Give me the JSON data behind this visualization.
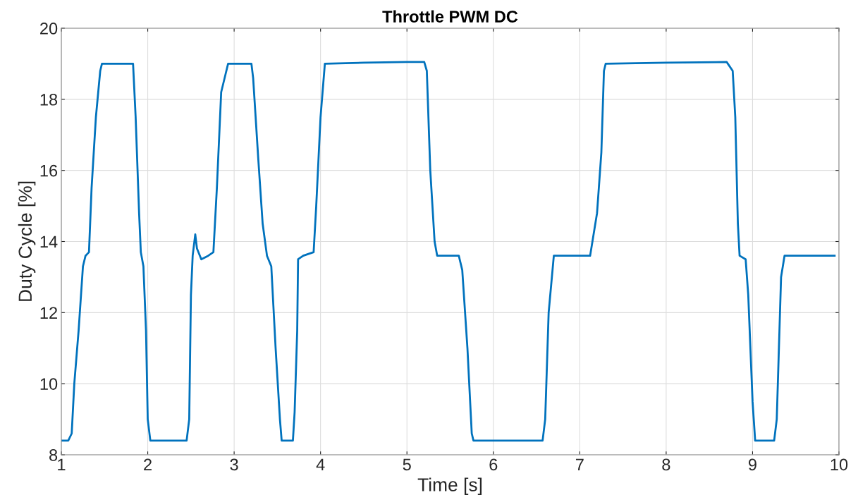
{
  "chart_data": {
    "type": "line",
    "title": "Throttle PWM DC",
    "xlabel": "Time [s]",
    "ylabel": "Duty Cycle [%]",
    "x": [
      1.0,
      1.08,
      1.12,
      1.15,
      1.2,
      1.25,
      1.28,
      1.32,
      1.35,
      1.4,
      1.45,
      1.47,
      1.55,
      1.83,
      1.86,
      1.9,
      1.92,
      1.95,
      1.98,
      2.0,
      2.03,
      2.3,
      2.45,
      2.48,
      2.5,
      2.52,
      2.55,
      2.57,
      2.62,
      2.7,
      2.76,
      2.8,
      2.85,
      2.9,
      2.93,
      3.2,
      3.22,
      3.28,
      3.33,
      3.38,
      3.43,
      3.48,
      3.53,
      3.55,
      3.68,
      3.7,
      3.73,
      3.74,
      3.8,
      3.92,
      3.95,
      4.0,
      4.05,
      4.5,
      5.0,
      5.2,
      5.23,
      5.27,
      5.32,
      5.35,
      5.6,
      5.64,
      5.7,
      5.75,
      5.77,
      6.2,
      6.57,
      6.6,
      6.64,
      6.7,
      6.9,
      7.12,
      7.2,
      7.25,
      7.28,
      7.3,
      8.0,
      8.7,
      8.77,
      8.8,
      8.83,
      8.85,
      8.92,
      8.95,
      9.0,
      9.03,
      9.25,
      9.28,
      9.33,
      9.37,
      9.6,
      9.95
    ],
    "series": [
      {
        "color": "#0072bd",
        "values": [
          8.4,
          8.4,
          8.6,
          10,
          11.5,
          13.3,
          13.6,
          13.7,
          15.5,
          17.5,
          18.8,
          19.0,
          19.0,
          19.0,
          17.5,
          14.8,
          13.7,
          13.3,
          11.5,
          9.0,
          8.4,
          8.4,
          8.4,
          9.0,
          12.5,
          13.6,
          14.2,
          13.8,
          13.5,
          13.6,
          13.7,
          15.5,
          18.2,
          18.7,
          19.0,
          19.0,
          18.6,
          16.3,
          14.5,
          13.6,
          13.3,
          11.0,
          9.0,
          8.4,
          8.4,
          9.2,
          11.5,
          13.5,
          13.6,
          13.7,
          15.0,
          17.5,
          19.0,
          19.03,
          19.05,
          19.05,
          18.8,
          16.0,
          14.0,
          13.6,
          13.6,
          13.2,
          11.0,
          8.6,
          8.4,
          8.4,
          8.4,
          9.0,
          12.0,
          13.6,
          13.6,
          13.6,
          14.8,
          16.5,
          18.8,
          19.0,
          19.03,
          19.05,
          18.8,
          17.5,
          14.5,
          13.6,
          13.5,
          12.5,
          9.5,
          8.4,
          8.4,
          9.0,
          13.0,
          13.6,
          13.6,
          13.6
        ]
      }
    ],
    "xlim": [
      1,
      10
    ],
    "xticks": [
      1,
      2,
      3,
      4,
      5,
      6,
      7,
      8,
      9,
      10
    ],
    "ylim": [
      8,
      20
    ],
    "yticks": [
      8,
      10,
      12,
      14,
      16,
      18,
      20
    ],
    "grid": true,
    "line_style": "solid",
    "marker": "none"
  }
}
